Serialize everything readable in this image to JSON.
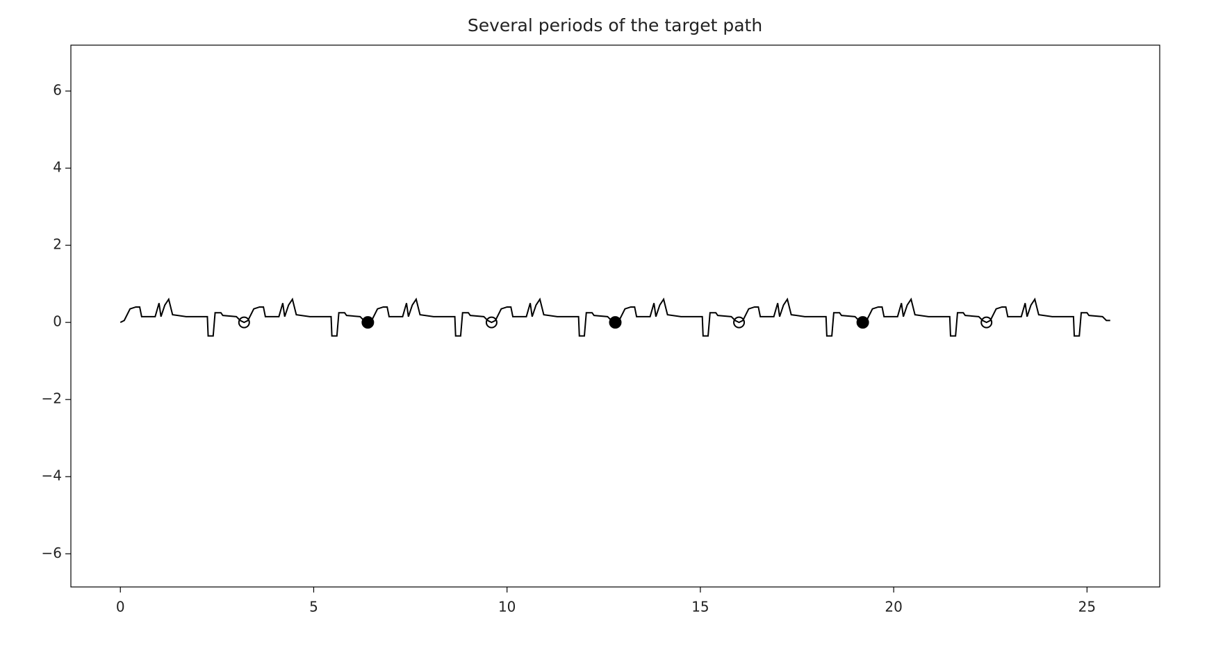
{
  "chart_data": {
    "type": "line",
    "title": "Several periods of the target path",
    "xlim": [
      -1.28,
      26.88
    ],
    "ylim": [
      -6.86,
      7.19
    ],
    "xticks": [
      0,
      5,
      10,
      15,
      20,
      25
    ],
    "yticks": [
      {
        "value": -6,
        "label": "−6"
      },
      {
        "value": -4,
        "label": "−4"
      },
      {
        "value": -2,
        "label": "−2"
      },
      0,
      2,
      4,
      6
    ],
    "grid": false,
    "series": [
      {
        "style": "line",
        "color": "#000000",
        "x": [
          0,
          0.1,
          0.25,
          0.4,
          0.5,
          0.55,
          0.9,
          1.0,
          1.05,
          1.15,
          1.25,
          1.35,
          1.7,
          2.25,
          2.27,
          2.4,
          2.45,
          2.6,
          2.65,
          3.0,
          3.1,
          3.2,
          3.3,
          3.45,
          3.6,
          3.7,
          3.75,
          4.1,
          4.2,
          4.25,
          4.35,
          4.45,
          4.55,
          4.9,
          5.45,
          5.47,
          5.6,
          5.65,
          5.8,
          5.85,
          6.2,
          6.3,
          6.4,
          6.5,
          6.65,
          6.8,
          6.9,
          6.95,
          7.3,
          7.4,
          7.45,
          7.55,
          7.65,
          7.75,
          8.1,
          8.65,
          8.67,
          8.8,
          8.85,
          9.0,
          9.05,
          9.4,
          9.5,
          9.6,
          9.7,
          9.85,
          10.0,
          10.1,
          10.15,
          10.5,
          10.6,
          10.65,
          10.75,
          10.85,
          10.95,
          11.3,
          11.85,
          11.87,
          12.0,
          12.05,
          12.2,
          12.25,
          12.6,
          12.7,
          12.8,
          12.9,
          13.05,
          13.2,
          13.3,
          13.35,
          13.7,
          13.8,
          13.85,
          13.95,
          14.05,
          14.15,
          14.5,
          15.05,
          15.07,
          15.2,
          15.25,
          15.4,
          15.45,
          15.8,
          15.9,
          16.0,
          16.1,
          16.25,
          16.4,
          16.5,
          16.55,
          16.9,
          17.0,
          17.05,
          17.15,
          17.25,
          17.35,
          17.7,
          18.25,
          18.27,
          18.4,
          18.45,
          18.6,
          18.65,
          19.0,
          19.1,
          19.2,
          19.3,
          19.45,
          19.6,
          19.7,
          19.75,
          20.1,
          20.2,
          20.25,
          20.35,
          20.45,
          20.55,
          20.9,
          21.45,
          21.47,
          21.6,
          21.65,
          21.8,
          21.85,
          22.2,
          22.3,
          22.4,
          22.5,
          22.65,
          22.8,
          22.9,
          22.95,
          23.3,
          23.4,
          23.45,
          23.55,
          23.65,
          23.75,
          24.1,
          24.65,
          24.67,
          24.8,
          24.85,
          25.0,
          25.05,
          25.4,
          25.5,
          25.6
        ],
        "values": [
          0,
          0.05,
          0.35,
          0.4,
          0.4,
          0.15,
          0.15,
          0.5,
          0.15,
          0.45,
          0.6,
          0.2,
          0.15,
          0.15,
          -0.35,
          -0.35,
          0.25,
          0.25,
          0.18,
          0.15,
          0.05,
          0,
          0.05,
          0.35,
          0.4,
          0.4,
          0.15,
          0.15,
          0.5,
          0.15,
          0.45,
          0.6,
          0.2,
          0.15,
          0.15,
          -0.35,
          -0.35,
          0.25,
          0.25,
          0.18,
          0.15,
          0.05,
          0,
          0.05,
          0.35,
          0.4,
          0.4,
          0.15,
          0.15,
          0.5,
          0.15,
          0.45,
          0.6,
          0.2,
          0.15,
          0.15,
          -0.35,
          -0.35,
          0.25,
          0.25,
          0.18,
          0.15,
          0.05,
          0,
          0.05,
          0.35,
          0.4,
          0.4,
          0.15,
          0.15,
          0.5,
          0.15,
          0.45,
          0.6,
          0.2,
          0.15,
          0.15,
          -0.35,
          -0.35,
          0.25,
          0.25,
          0.18,
          0.15,
          0.05,
          0,
          0.05,
          0.35,
          0.4,
          0.4,
          0.15,
          0.15,
          0.5,
          0.15,
          0.45,
          0.6,
          0.2,
          0.15,
          0.15,
          -0.35,
          -0.35,
          0.25,
          0.25,
          0.18,
          0.15,
          0.05,
          0,
          0.05,
          0.35,
          0.4,
          0.4,
          0.15,
          0.15,
          0.5,
          0.15,
          0.45,
          0.6,
          0.2,
          0.15,
          0.15,
          -0.35,
          -0.35,
          0.25,
          0.25,
          0.18,
          0.15,
          0.05,
          0,
          0.05,
          0.35,
          0.4,
          0.4,
          0.15,
          0.15,
          0.5,
          0.15,
          0.45,
          0.6,
          0.2,
          0.15,
          0.15,
          -0.35,
          -0.35,
          0.25,
          0.25,
          0.18,
          0.15,
          0.05,
          0,
          0.05,
          0.35,
          0.4,
          0.4,
          0.15,
          0.15,
          0.5,
          0.15,
          0.45,
          0.6,
          0.2,
          0.15,
          0.15,
          -0.35,
          -0.35,
          0.25,
          0.25,
          0.18,
          0.15,
          0.05,
          0.05
        ]
      },
      {
        "style": "open-marker",
        "color": "#000000",
        "x": [
          3.2,
          9.6,
          16,
          22.4
        ],
        "values": [
          0,
          0,
          0,
          0
        ]
      },
      {
        "style": "filled-marker",
        "color": "#000000",
        "x": [
          6.4,
          12.8,
          19.2
        ],
        "values": [
          0,
          0,
          0
        ]
      }
    ]
  }
}
